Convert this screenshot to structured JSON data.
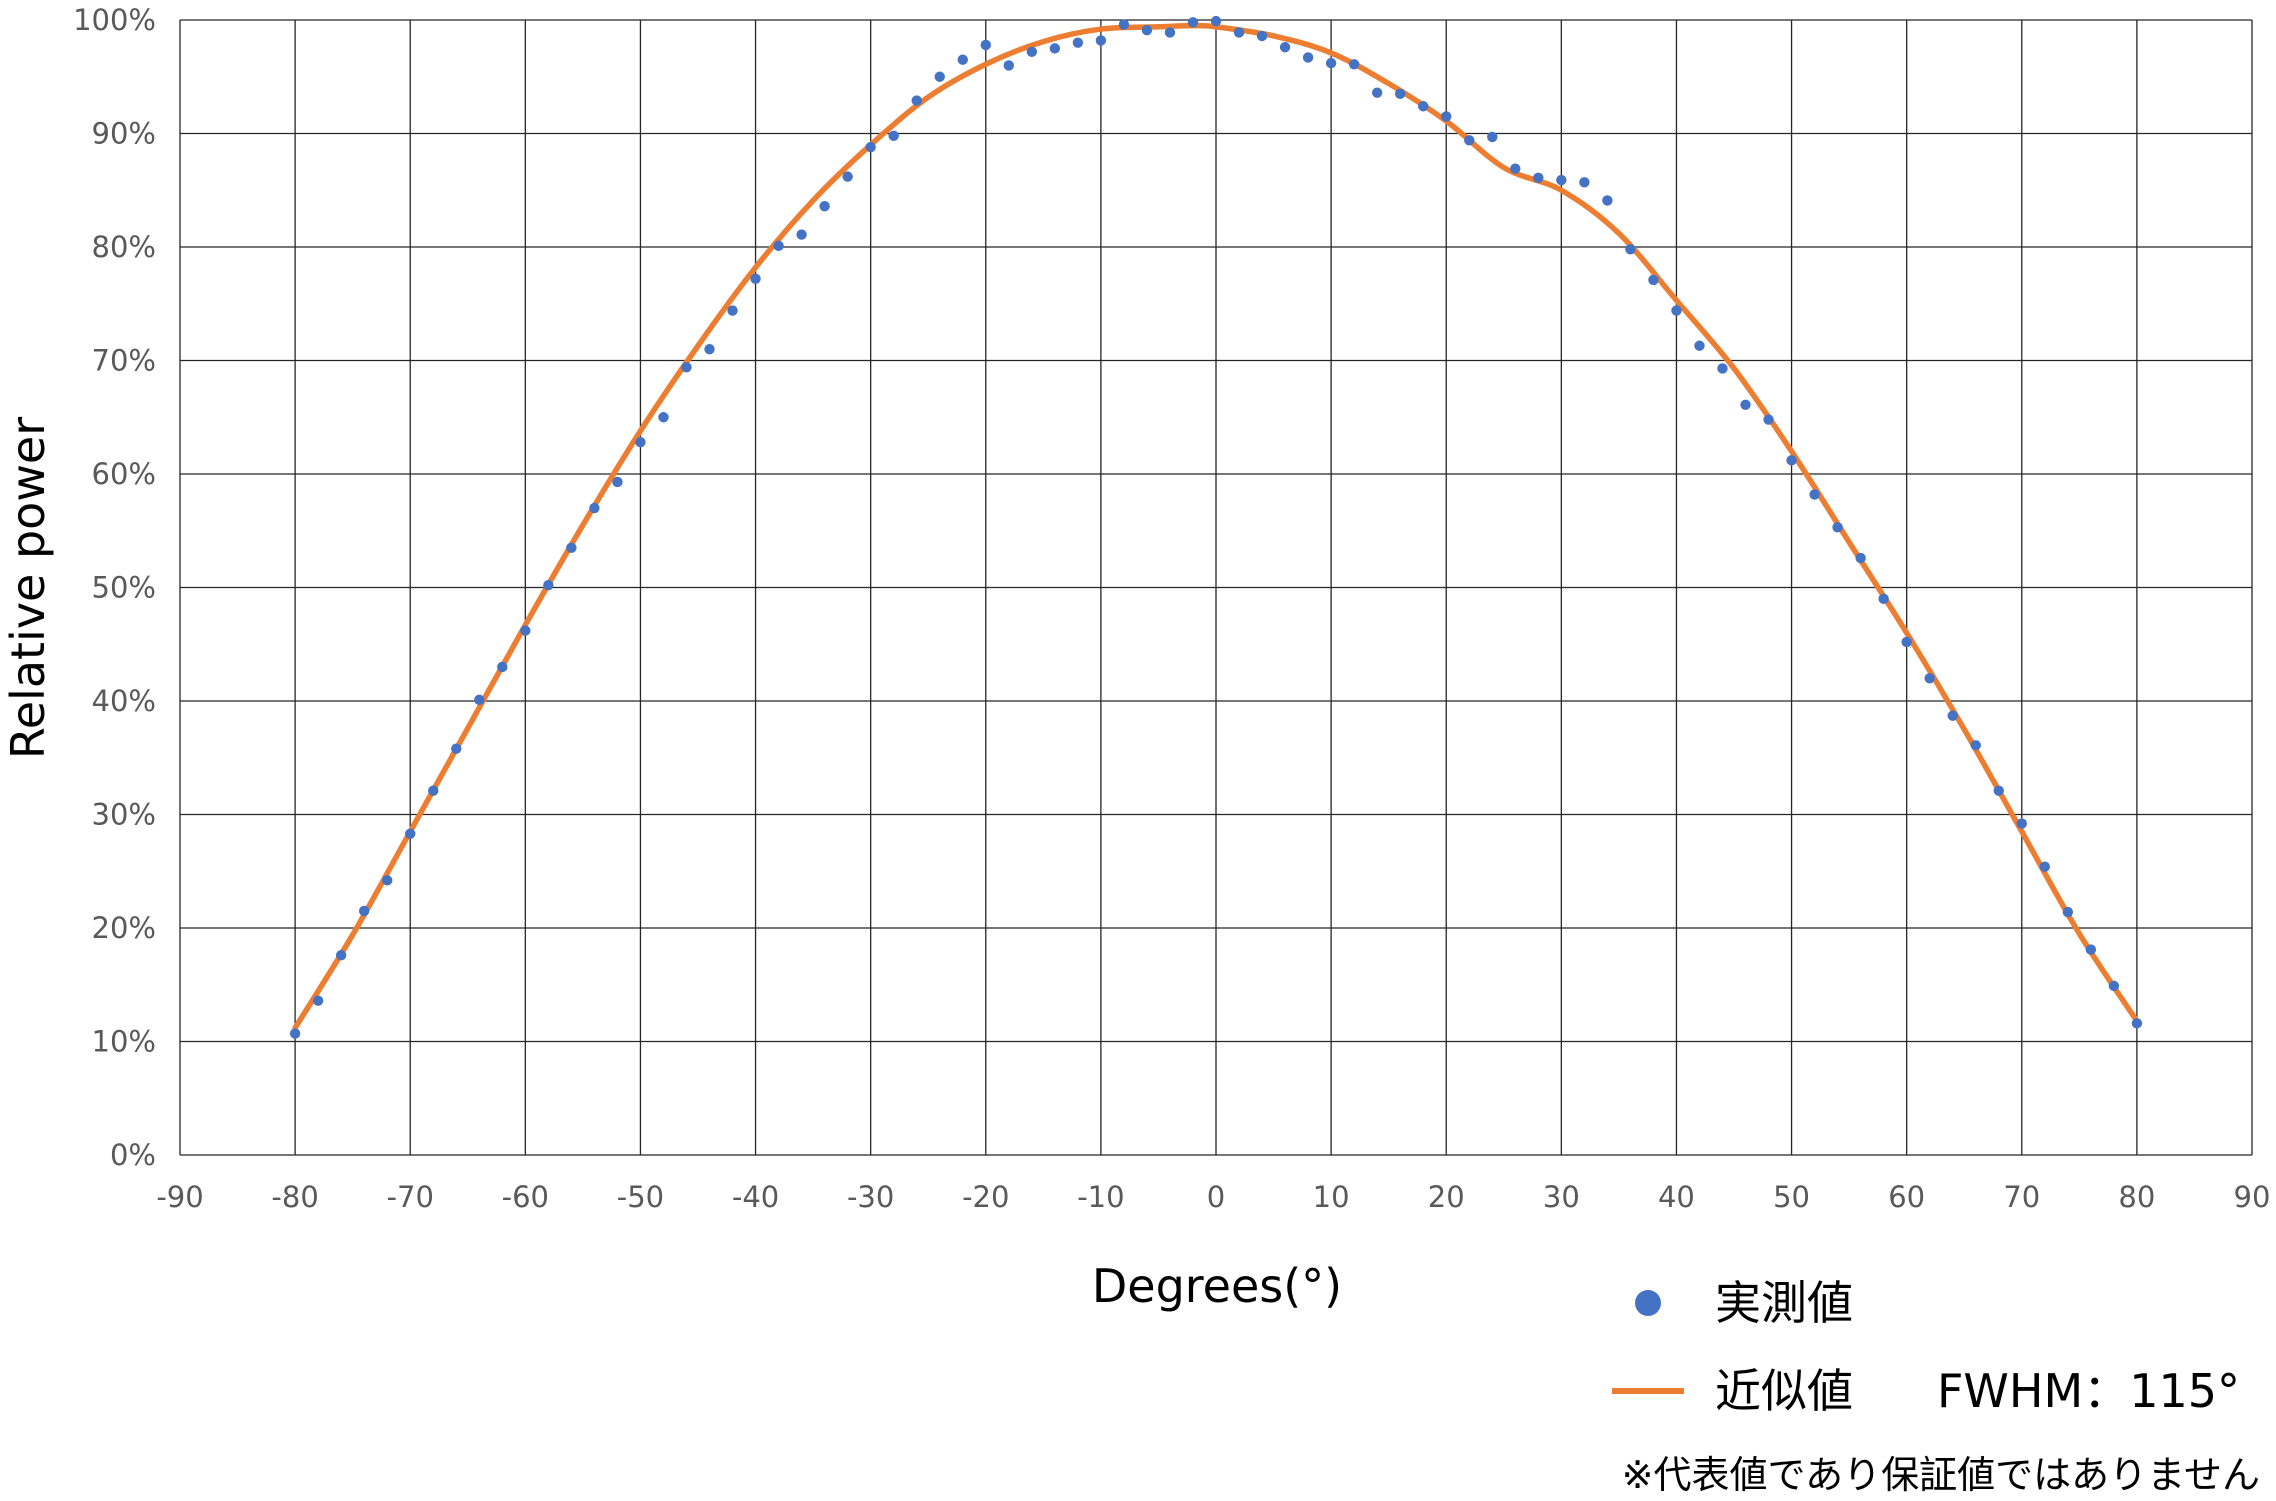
{
  "chart_data": {
    "type": "scatter",
    "title": "",
    "xlabel": "Degrees(°)",
    "ylabel": "Relative power",
    "xlim": [
      -90,
      90
    ],
    "ylim": [
      0,
      100
    ],
    "x_ticks": [
      -90,
      -80,
      -70,
      -60,
      -50,
      -40,
      -30,
      -20,
      -10,
      0,
      10,
      20,
      30,
      40,
      50,
      60,
      70,
      80,
      90
    ],
    "y_ticks": [
      0,
      10,
      20,
      30,
      40,
      50,
      60,
      70,
      80,
      90,
      100
    ],
    "y_tick_suffix": "%",
    "grid": true,
    "legend_position": "bottom-right",
    "series": [
      {
        "name": "実測値",
        "type": "scatter",
        "color": "#4472C4",
        "x": [
          -80,
          -78,
          -76,
          -74,
          -72,
          -70,
          -68,
          -66,
          -64,
          -62,
          -60,
          -58,
          -56,
          -54,
          -52,
          -50,
          -48,
          -46,
          -44,
          -42,
          -40,
          -38,
          -36,
          -34,
          -32,
          -30,
          -28,
          -26,
          -24,
          -22,
          -20,
          -18,
          -16,
          -14,
          -12,
          -10,
          -8,
          -6,
          -4,
          -2,
          0,
          2,
          4,
          6,
          8,
          10,
          12,
          14,
          16,
          18,
          20,
          22,
          24,
          26,
          28,
          30,
          32,
          34,
          36,
          38,
          40,
          42,
          44,
          46,
          48,
          50,
          52,
          54,
          56,
          58,
          60,
          62,
          64,
          66,
          68,
          70,
          72,
          74,
          76,
          78,
          80
        ],
        "y": [
          10.7,
          13.6,
          17.6,
          21.5,
          24.2,
          28.3,
          32.1,
          35.8,
          40.1,
          43.0,
          46.2,
          50.2,
          53.5,
          57.0,
          59.3,
          62.8,
          65.0,
          69.4,
          71.0,
          74.4,
          77.2,
          80.1,
          81.1,
          83.6,
          86.2,
          88.8,
          89.8,
          92.9,
          95.0,
          96.5,
          97.8,
          96.0,
          97.2,
          97.5,
          98.0,
          98.2,
          99.6,
          99.1,
          98.9,
          99.8,
          99.9,
          98.9,
          98.6,
          97.6,
          96.7,
          96.2,
          96.1,
          93.6,
          93.5,
          92.4,
          91.5,
          89.4,
          89.7,
          86.9,
          86.1,
          85.9,
          85.7,
          84.1,
          79.8,
          77.1,
          74.4,
          71.3,
          69.3,
          66.1,
          64.8,
          61.2,
          58.2,
          55.3,
          52.6,
          49.0,
          45.2,
          42.0,
          38.7,
          36.1,
          32.1,
          29.2,
          25.4,
          21.4,
          18.1,
          14.9,
          11.6
        ]
      },
      {
        "name": "近似値",
        "type": "line",
        "color": "#ED7D31",
        "x": [
          -80,
          -75,
          -70,
          -65,
          -60,
          -55,
          -50,
          -45,
          -40,
          -35,
          -30,
          -25,
          -20,
          -15,
          -10,
          -5,
          -2,
          0,
          5,
          10,
          15,
          20,
          25,
          30,
          35,
          40,
          45,
          50,
          55,
          60,
          65,
          70,
          75,
          80
        ],
        "y": [
          11.2,
          19.4,
          28.5,
          37.6,
          46.7,
          55.5,
          63.8,
          71.3,
          78.2,
          84.1,
          89.0,
          93.2,
          96.1,
          98.1,
          99.2,
          99.4,
          99.5,
          99.4,
          98.6,
          97.1,
          94.4,
          91.1,
          87.0,
          85.0,
          81.2,
          75.3,
          69.3,
          62.0,
          54.0,
          46.0,
          37.5,
          28.5,
          19.5,
          11.8
        ]
      }
    ],
    "legend": {
      "scatter_label": "実測値",
      "line_label": "近似値",
      "fwhm_text": "FWHM：115°"
    },
    "note": "※代表値であり保証値ではありません"
  }
}
